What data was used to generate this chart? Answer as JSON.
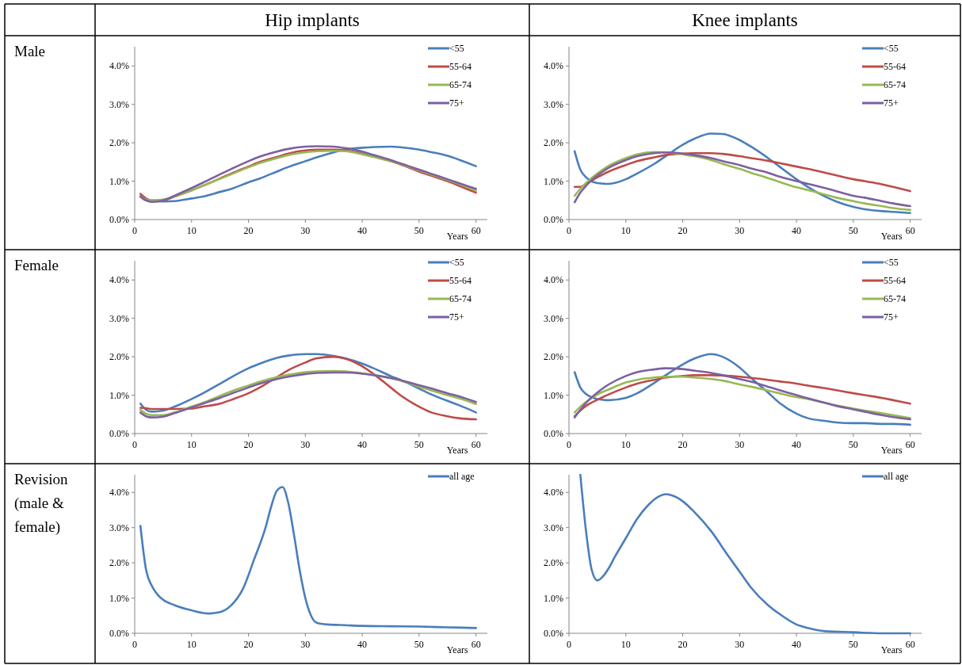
{
  "chart_data": [
    {
      "type": "line",
      "title": "Hip implants",
      "ylabel": "Male",
      "xlabel": "Years",
      "xlim": [
        0,
        62
      ],
      "xticks": [
        0,
        10,
        20,
        30,
        40,
        50,
        60
      ],
      "ylim": [
        0,
        4.5
      ],
      "yticks": [
        {
          "value": 0,
          "label": "0.0%"
        },
        {
          "value": 1,
          "label": "1.0%"
        },
        {
          "value": 2,
          "label": "2.0%"
        },
        {
          "value": 3,
          "label": "3.0%"
        },
        {
          "value": 4,
          "label": "4.0%"
        }
      ],
      "legend": "top right",
      "grid": false,
      "x": [
        1,
        2,
        3,
        5,
        7,
        10,
        12,
        15,
        17,
        20,
        22,
        25,
        27,
        30,
        32,
        35,
        37,
        40,
        42,
        45,
        47,
        50,
        52,
        55,
        57,
        60
      ],
      "series": [
        {
          "name": "<55",
          "color": "#4a7ebb",
          "values": [
            0.6,
            0.5,
            0.48,
            0.47,
            0.48,
            0.55,
            0.6,
            0.72,
            0.8,
            0.97,
            1.07,
            1.25,
            1.37,
            1.52,
            1.62,
            1.75,
            1.82,
            1.87,
            1.89,
            1.9,
            1.88,
            1.82,
            1.76,
            1.66,
            1.56,
            1.39
          ]
        },
        {
          "name": "55-64",
          "color": "#be4b48",
          "values": [
            0.67,
            0.55,
            0.5,
            0.5,
            0.6,
            0.76,
            0.88,
            1.07,
            1.2,
            1.38,
            1.5,
            1.63,
            1.72,
            1.8,
            1.82,
            1.82,
            1.8,
            1.72,
            1.64,
            1.52,
            1.42,
            1.25,
            1.15,
            1.0,
            0.88,
            0.7
          ]
        },
        {
          "name": "65-74",
          "color": "#98b954",
          "values": [
            0.6,
            0.52,
            0.5,
            0.52,
            0.6,
            0.76,
            0.88,
            1.06,
            1.18,
            1.36,
            1.47,
            1.6,
            1.68,
            1.75,
            1.78,
            1.79,
            1.78,
            1.7,
            1.63,
            1.52,
            1.43,
            1.28,
            1.18,
            1.03,
            0.93,
            0.75
          ]
        },
        {
          "name": "75+",
          "color": "#7d60a0",
          "values": [
            0.6,
            0.5,
            0.46,
            0.5,
            0.62,
            0.82,
            0.96,
            1.18,
            1.32,
            1.52,
            1.64,
            1.77,
            1.84,
            1.9,
            1.91,
            1.9,
            1.86,
            1.77,
            1.68,
            1.55,
            1.45,
            1.3,
            1.2,
            1.05,
            0.95,
            0.8
          ]
        }
      ]
    },
    {
      "type": "line",
      "title": "Knee implants",
      "xlabel": "Years",
      "xlim": [
        0,
        62
      ],
      "xticks": [
        0,
        10,
        20,
        30,
        40,
        50,
        60
      ],
      "ylim": [
        0,
        4.5
      ],
      "yticks": [
        {
          "value": 0,
          "label": "0.0%"
        },
        {
          "value": 1,
          "label": "1.0%"
        },
        {
          "value": 2,
          "label": "2.0%"
        },
        {
          "value": 3,
          "label": "3.0%"
        },
        {
          "value": 4,
          "label": "4.0%"
        }
      ],
      "legend": "top right",
      "grid": false,
      "x": [
        1,
        2,
        3,
        5,
        7,
        10,
        12,
        15,
        17,
        20,
        22,
        25,
        27,
        30,
        32,
        35,
        37,
        40,
        42,
        45,
        47,
        50,
        52,
        55,
        57,
        60
      ],
      "series": [
        {
          "name": "<55",
          "color": "#4a7ebb",
          "values": [
            1.78,
            1.3,
            1.1,
            0.95,
            0.93,
            1.05,
            1.2,
            1.45,
            1.65,
            1.95,
            2.1,
            2.24,
            2.23,
            2.07,
            1.9,
            1.6,
            1.38,
            1.05,
            0.85,
            0.6,
            0.47,
            0.33,
            0.27,
            0.22,
            0.2,
            0.17
          ]
        },
        {
          "name": "55-64",
          "color": "#be4b48",
          "values": [
            0.85,
            0.85,
            0.92,
            1.1,
            1.25,
            1.42,
            1.52,
            1.62,
            1.68,
            1.72,
            1.73,
            1.73,
            1.71,
            1.65,
            1.6,
            1.53,
            1.47,
            1.38,
            1.32,
            1.22,
            1.15,
            1.05,
            1.0,
            0.92,
            0.85,
            0.74
          ]
        },
        {
          "name": "65-74",
          "color": "#98b954",
          "values": [
            0.62,
            0.8,
            0.95,
            1.2,
            1.4,
            1.6,
            1.7,
            1.76,
            1.75,
            1.7,
            1.65,
            1.55,
            1.45,
            1.32,
            1.22,
            1.08,
            0.98,
            0.84,
            0.77,
            0.65,
            0.57,
            0.48,
            0.42,
            0.35,
            0.3,
            0.25
          ]
        },
        {
          "name": "75+",
          "color": "#7d60a0",
          "values": [
            0.45,
            0.7,
            0.88,
            1.15,
            1.35,
            1.55,
            1.65,
            1.73,
            1.75,
            1.72,
            1.68,
            1.6,
            1.52,
            1.42,
            1.33,
            1.22,
            1.12,
            1.0,
            0.93,
            0.82,
            0.74,
            0.62,
            0.57,
            0.48,
            0.42,
            0.35
          ]
        }
      ]
    },
    {
      "type": "line",
      "ylabel": "Female",
      "xlabel": "Years",
      "xlim": [
        0,
        62
      ],
      "xticks": [
        0,
        10,
        20,
        30,
        40,
        50,
        60
      ],
      "ylim": [
        0,
        4.5
      ],
      "yticks": [
        {
          "value": 0,
          "label": "0.0%"
        },
        {
          "value": 1,
          "label": "1.0%"
        },
        {
          "value": 2,
          "label": "2.0%"
        },
        {
          "value": 3,
          "label": "3.0%"
        },
        {
          "value": 4,
          "label": "4.0%"
        }
      ],
      "legend": "top right",
      "grid": false,
      "x": [
        1,
        2,
        3,
        5,
        7,
        10,
        12,
        15,
        17,
        20,
        22,
        25,
        27,
        30,
        32,
        35,
        37,
        40,
        42,
        45,
        47,
        50,
        52,
        55,
        57,
        60
      ],
      "series": [
        {
          "name": "<55",
          "color": "#4a7ebb",
          "values": [
            0.78,
            0.62,
            0.57,
            0.6,
            0.7,
            0.9,
            1.05,
            1.3,
            1.47,
            1.7,
            1.82,
            1.97,
            2.03,
            2.07,
            2.07,
            2.02,
            1.96,
            1.82,
            1.7,
            1.5,
            1.38,
            1.17,
            1.03,
            0.85,
            0.74,
            0.55
          ]
        },
        {
          "name": "55-64",
          "color": "#be4b48",
          "values": [
            0.67,
            0.66,
            0.64,
            0.64,
            0.64,
            0.65,
            0.7,
            0.78,
            0.88,
            1.05,
            1.2,
            1.47,
            1.65,
            1.85,
            1.96,
            2.0,
            1.95,
            1.75,
            1.55,
            1.2,
            0.97,
            0.7,
            0.56,
            0.45,
            0.4,
            0.37
          ]
        },
        {
          "name": "65-74",
          "color": "#98b954",
          "values": [
            0.62,
            0.52,
            0.48,
            0.48,
            0.55,
            0.7,
            0.8,
            0.98,
            1.1,
            1.25,
            1.35,
            1.47,
            1.53,
            1.6,
            1.62,
            1.63,
            1.62,
            1.57,
            1.53,
            1.44,
            1.37,
            1.22,
            1.13,
            1.0,
            0.92,
            0.77
          ]
        },
        {
          "name": "75+",
          "color": "#7d60a0",
          "values": [
            0.55,
            0.45,
            0.42,
            0.44,
            0.53,
            0.68,
            0.78,
            0.93,
            1.04,
            1.2,
            1.3,
            1.42,
            1.48,
            1.55,
            1.58,
            1.59,
            1.59,
            1.56,
            1.52,
            1.45,
            1.38,
            1.26,
            1.18,
            1.05,
            0.97,
            0.82
          ]
        }
      ]
    },
    {
      "type": "line",
      "xlabel": "Years",
      "xlim": [
        0,
        62
      ],
      "xticks": [
        0,
        10,
        20,
        30,
        40,
        50,
        60
      ],
      "ylim": [
        0,
        4.5
      ],
      "yticks": [
        {
          "value": 0,
          "label": "0.0%"
        },
        {
          "value": 1,
          "label": "1.0%"
        },
        {
          "value": 2,
          "label": "2.0%"
        },
        {
          "value": 3,
          "label": "3.0%"
        },
        {
          "value": 4,
          "label": "4.0%"
        }
      ],
      "legend": "top right",
      "grid": false,
      "x": [
        1,
        2,
        3,
        5,
        7,
        10,
        12,
        15,
        17,
        20,
        22,
        25,
        27,
        30,
        32,
        35,
        37,
        40,
        42,
        45,
        47,
        50,
        52,
        55,
        57,
        60
      ],
      "series": [
        {
          "name": "<55",
          "color": "#4a7ebb",
          "values": [
            1.6,
            1.2,
            1.03,
            0.9,
            0.87,
            0.93,
            1.05,
            1.32,
            1.52,
            1.8,
            1.95,
            2.07,
            2.0,
            1.72,
            1.45,
            1.07,
            0.8,
            0.52,
            0.4,
            0.33,
            0.29,
            0.27,
            0.27,
            0.25,
            0.25,
            0.23
          ]
        },
        {
          "name": "55-64",
          "color": "#be4b48",
          "values": [
            0.45,
            0.6,
            0.72,
            0.88,
            1.02,
            1.2,
            1.3,
            1.4,
            1.46,
            1.5,
            1.52,
            1.52,
            1.51,
            1.48,
            1.45,
            1.4,
            1.36,
            1.3,
            1.25,
            1.18,
            1.13,
            1.05,
            1.0,
            0.93,
            0.87,
            0.78
          ]
        },
        {
          "name": "65-74",
          "color": "#98b954",
          "values": [
            0.55,
            0.7,
            0.82,
            1.02,
            1.15,
            1.33,
            1.4,
            1.46,
            1.48,
            1.48,
            1.46,
            1.42,
            1.38,
            1.28,
            1.22,
            1.12,
            1.05,
            0.95,
            0.9,
            0.8,
            0.73,
            0.65,
            0.6,
            0.53,
            0.48,
            0.4
          ]
        },
        {
          "name": "75+",
          "color": "#7d60a0",
          "values": [
            0.42,
            0.62,
            0.8,
            1.07,
            1.28,
            1.5,
            1.6,
            1.67,
            1.7,
            1.68,
            1.64,
            1.58,
            1.52,
            1.42,
            1.35,
            1.22,
            1.13,
            1.0,
            0.92,
            0.8,
            0.72,
            0.63,
            0.57,
            0.48,
            0.43,
            0.37
          ]
        }
      ]
    },
    {
      "type": "line",
      "ylabel": "Revision (male & female)",
      "xlabel": "Years",
      "xlim": [
        0,
        62
      ],
      "xticks": [
        0,
        10,
        20,
        30,
        40,
        50,
        60
      ],
      "ylim": [
        0,
        4.5
      ],
      "yticks": [
        {
          "value": 0,
          "label": "0.0%"
        },
        {
          "value": 1,
          "label": "1.0%"
        },
        {
          "value": 2,
          "label": "2.0%"
        },
        {
          "value": 3,
          "label": "3.0%"
        },
        {
          "value": 4,
          "label": "4.0%"
        }
      ],
      "legend": "top right",
      "grid": false,
      "series": [
        {
          "name": "all age",
          "color": "#4a7ebb",
          "x": [
            1,
            2,
            3,
            4,
            5,
            7,
            10,
            13,
            15,
            17,
            19,
            21,
            23,
            24,
            25,
            26,
            27,
            28,
            29,
            30,
            31,
            32,
            34,
            37,
            40,
            45,
            50,
            55,
            60
          ],
          "values": [
            3.05,
            1.8,
            1.35,
            1.1,
            0.95,
            0.8,
            0.65,
            0.56,
            0.6,
            0.8,
            1.25,
            2.1,
            3.0,
            3.6,
            4.05,
            4.15,
            3.7,
            2.8,
            1.8,
            1.0,
            0.5,
            0.3,
            0.25,
            0.23,
            0.21,
            0.2,
            0.19,
            0.17,
            0.15
          ]
        }
      ]
    },
    {
      "type": "line",
      "xlabel": "Years",
      "xlim": [
        0,
        62
      ],
      "xticks": [
        0,
        10,
        20,
        30,
        40,
        50,
        60
      ],
      "ylim": [
        0,
        4.5
      ],
      "yticks": [
        {
          "value": 0,
          "label": "0.0%"
        },
        {
          "value": 1,
          "label": "1.0%"
        },
        {
          "value": 2,
          "label": "2.0%"
        },
        {
          "value": 3,
          "label": "3.0%"
        },
        {
          "value": 4,
          "label": "4.0%"
        }
      ],
      "legend": "top right",
      "grid": false,
      "series": [
        {
          "name": "all age",
          "color": "#4a7ebb",
          "x": [
            2,
            3,
            4,
            5,
            6,
            7,
            8,
            10,
            12,
            14,
            16,
            17,
            18,
            20,
            22,
            25,
            28,
            30,
            32,
            35,
            37,
            40,
            42,
            45,
            50,
            55,
            60
          ],
          "values": [
            4.5,
            2.9,
            1.8,
            1.5,
            1.62,
            1.85,
            2.15,
            2.7,
            3.25,
            3.65,
            3.9,
            3.95,
            3.92,
            3.75,
            3.45,
            2.9,
            2.2,
            1.75,
            1.3,
            0.8,
            0.55,
            0.25,
            0.15,
            0.06,
            0.03,
            0.0,
            0.0
          ]
        }
      ]
    }
  ]
}
